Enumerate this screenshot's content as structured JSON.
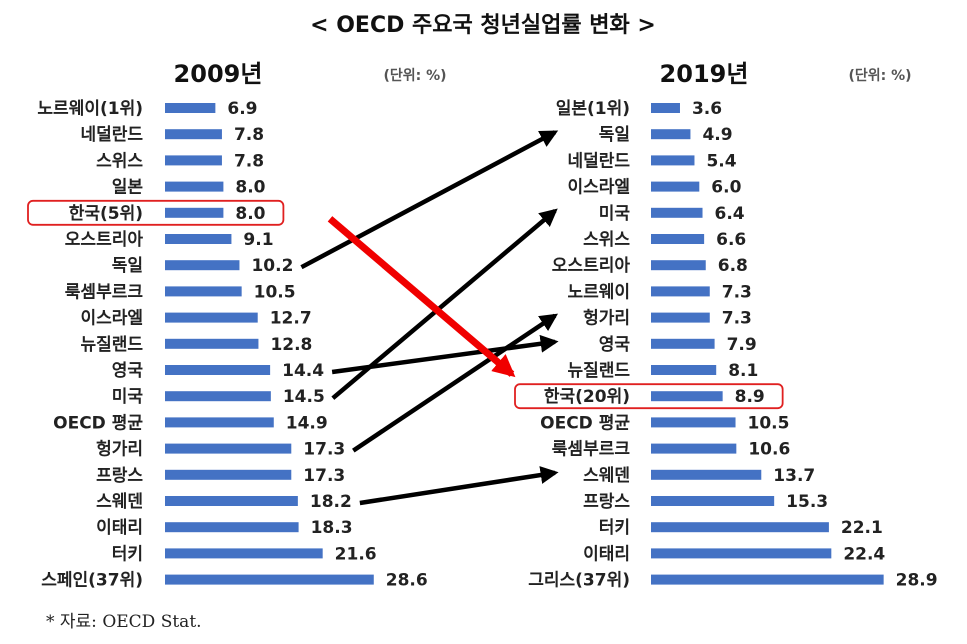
{
  "title": "< OECD 주요국 청년실업률 변화 >",
  "source": "* 자료: OECD Stat.",
  "colors": {
    "bar": "#4472C4",
    "highlight": "#E02020",
    "arrow": "#000000",
    "red_arrow": "#F00000"
  },
  "chart_data": [
    {
      "type": "bar",
      "orientation": "horizontal",
      "year_label": "2009년",
      "unit_label": "(단위: %)",
      "categories": [
        "노르웨이(1위)",
        "네덜란드",
        "스위스",
        "일본",
        "한국(5위)",
        "오스트리아",
        "독일",
        "룩셈부르크",
        "이스라엘",
        "뉴질랜드",
        "영국",
        "미국",
        "OECD 평균",
        "헝가리",
        "프랑스",
        "스웨덴",
        "이태리",
        "터키",
        "스페인(37위)"
      ],
      "values": [
        6.9,
        7.8,
        7.8,
        8.0,
        8.0,
        9.1,
        10.2,
        10.5,
        12.7,
        12.8,
        14.4,
        14.5,
        14.9,
        17.3,
        17.3,
        18.2,
        18.3,
        21.6,
        28.6
      ],
      "value_labels": [
        "6.9",
        "7.8",
        "7.8",
        "8.0",
        "8.0",
        "9.1",
        "10.2",
        "10.5",
        "12.7",
        "12.8",
        "14.4",
        "14.5",
        "14.9",
        "17.3",
        "17.3",
        "18.2",
        "18.3",
        "21.6",
        "28.6"
      ],
      "highlighted": "한국(5위)"
    },
    {
      "type": "bar",
      "orientation": "horizontal",
      "year_label": "2019년",
      "unit_label": "(단위: %)",
      "categories": [
        "일본(1위)",
        "독일",
        "네덜란드",
        "이스라엘",
        "미국",
        "스위스",
        "오스트리아",
        "노르웨이",
        "헝가리",
        "영국",
        "뉴질랜드",
        "한국(20위)",
        "OECD 평균",
        "룩셈부르크",
        "스웨덴",
        "프랑스",
        "터키",
        "이태리",
        "그리스(37위)"
      ],
      "values": [
        3.6,
        4.9,
        5.4,
        6.0,
        6.4,
        6.6,
        6.8,
        7.3,
        7.3,
        7.9,
        8.1,
        8.9,
        10.5,
        10.6,
        13.7,
        15.3,
        22.1,
        22.4,
        28.9
      ],
      "value_labels": [
        "3.6",
        "4.9",
        "5.4",
        "6.0",
        "6.4",
        "6.6",
        "6.8",
        "7.3",
        "7.3",
        "7.9",
        "8.1",
        "8.9",
        "10.5",
        "10.6",
        "13.7",
        "15.3",
        "22.1",
        "22.4",
        "28.9"
      ],
      "highlighted": "한국(20위)"
    }
  ],
  "rank_changes": [
    {
      "country": "독일",
      "from_index": 6,
      "to_index": 1
    },
    {
      "country": "영국",
      "from_index": 10,
      "to_index": 9
    },
    {
      "country": "미국",
      "from_index": 11,
      "to_index": 4
    },
    {
      "country": "헝가리",
      "from_index": 13,
      "to_index": 8
    },
    {
      "country": "스웨덴",
      "from_index": 15,
      "to_index": 14
    },
    {
      "country": "한국",
      "from_index": 4,
      "to_index": 11,
      "emphasis": true
    }
  ]
}
